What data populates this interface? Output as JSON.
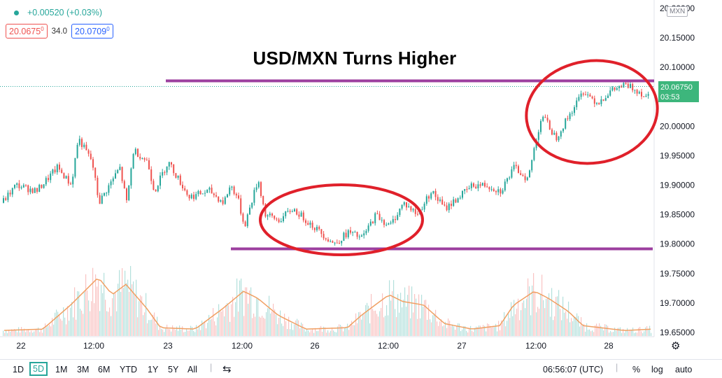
{
  "header": {
    "change": "+0.00520 (+0.03%)",
    "bid_prefix": "20.0675",
    "bid_suffix": "0",
    "spread": "34.0",
    "ask_prefix": "20.0709",
    "ask_suffix": "0"
  },
  "currency_badge": "MXN",
  "last_price_tag": {
    "price": "20.06750",
    "countdown": "03:53"
  },
  "toolbar": {
    "timeframes": [
      "1D",
      "5D",
      "1M",
      "3M",
      "6M",
      "YTD",
      "1Y",
      "5Y",
      "All"
    ],
    "active": "5D",
    "clock": "06:56:07 (UTC)",
    "percent": "%",
    "log": "log",
    "auto": "auto"
  },
  "colors": {
    "up": "#26a69a",
    "down": "#ef5350",
    "annotation_red": "#e0202a",
    "annotation_purple": "#9c3f9f",
    "volume_ma": "#f0a063",
    "price_tag": "#3db67c"
  },
  "chart_data": {
    "type": "candlestick",
    "title": "USD/MXN Turns Higher",
    "y_ticks": [
      "20.20000",
      "20.15000",
      "20.10000",
      "20.05000",
      "20.00000",
      "19.95000",
      "19.90000",
      "19.85000",
      "19.80000",
      "19.75000",
      "19.70000",
      "19.65000"
    ],
    "x_ticks": [
      "22",
      "12:00",
      "23",
      "12:00",
      "26",
      "12:00",
      "27",
      "12:00",
      "28"
    ],
    "ylim": [
      19.64,
      20.21
    ],
    "price_path": [
      [
        0,
        19.87
      ],
      [
        2,
        19.9
      ],
      [
        5,
        19.89
      ],
      [
        8,
        19.93
      ],
      [
        10,
        19.9
      ],
      [
        11,
        19.98
      ],
      [
        13,
        19.94
      ],
      [
        14,
        19.87
      ],
      [
        17,
        19.93
      ],
      [
        18,
        19.87
      ],
      [
        19,
        19.96
      ],
      [
        21,
        19.94
      ],
      [
        22,
        19.89
      ],
      [
        24,
        19.94
      ],
      [
        25,
        19.92
      ],
      [
        27,
        19.88
      ],
      [
        30,
        19.89
      ],
      [
        32,
        19.87
      ],
      [
        33,
        19.9
      ],
      [
        34,
        19.88
      ],
      [
        35,
        19.83
      ],
      [
        37,
        19.91
      ],
      [
        38,
        19.85
      ],
      [
        40,
        19.84
      ],
      [
        42,
        19.86
      ],
      [
        44,
        19.84
      ],
      [
        46,
        19.82
      ],
      [
        48,
        19.8
      ],
      [
        50,
        19.82
      ],
      [
        52,
        19.81
      ],
      [
        54,
        19.85
      ],
      [
        56,
        19.83
      ],
      [
        58,
        19.87
      ],
      [
        60,
        19.85
      ],
      [
        62,
        19.89
      ],
      [
        64,
        19.86
      ],
      [
        66,
        19.88
      ],
      [
        68,
        19.9
      ],
      [
        70,
        19.9
      ],
      [
        72,
        19.89
      ],
      [
        74,
        19.93
      ],
      [
        76,
        19.91
      ],
      [
        77,
        19.97
      ],
      [
        78,
        20.02
      ],
      [
        80,
        19.98
      ],
      [
        82,
        20.02
      ],
      [
        84,
        20.06
      ],
      [
        86,
        20.04
      ],
      [
        88,
        20.06
      ],
      [
        90,
        20.07
      ],
      [
        92,
        20.06
      ],
      [
        93,
        20.05
      ],
      [
        94,
        20.0675
      ]
    ],
    "volume_profile": [
      [
        0,
        0.08
      ],
      [
        6,
        0.1
      ],
      [
        10,
        0.45
      ],
      [
        14,
        0.85
      ],
      [
        16,
        0.6
      ],
      [
        18,
        0.75
      ],
      [
        21,
        0.4
      ],
      [
        23,
        0.12
      ],
      [
        28,
        0.1
      ],
      [
        32,
        0.4
      ],
      [
        35,
        0.65
      ],
      [
        37,
        0.55
      ],
      [
        40,
        0.3
      ],
      [
        44,
        0.1
      ],
      [
        50,
        0.12
      ],
      [
        52,
        0.3
      ],
      [
        56,
        0.6
      ],
      [
        58,
        0.5
      ],
      [
        61,
        0.45
      ],
      [
        64,
        0.18
      ],
      [
        68,
        0.1
      ],
      [
        72,
        0.15
      ],
      [
        74,
        0.45
      ],
      [
        77,
        0.65
      ],
      [
        79,
        0.55
      ],
      [
        82,
        0.35
      ],
      [
        84,
        0.15
      ],
      [
        90,
        0.08
      ],
      [
        94,
        0.1
      ]
    ],
    "resistance_level": 20.077,
    "support_level": 19.792
  }
}
